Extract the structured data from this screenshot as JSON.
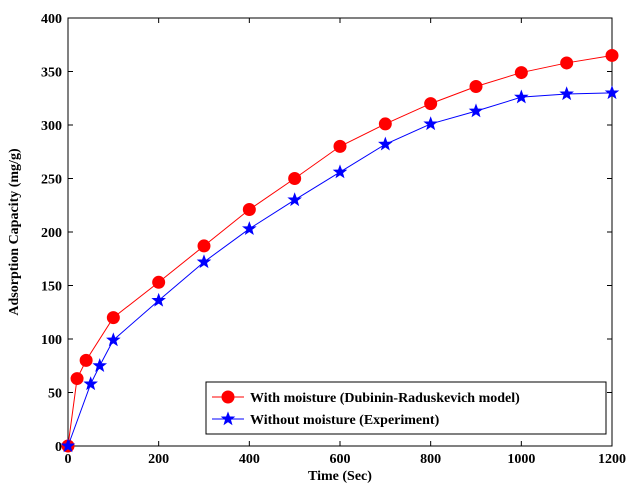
{
  "chart_data": {
    "type": "line",
    "title": "",
    "xlabel": "Time (Sec)",
    "ylabel": "Adsorption Capacity (mg/g)",
    "xlim": [
      0,
      1200
    ],
    "ylim": [
      0,
      400
    ],
    "xticks": [
      0,
      200,
      400,
      600,
      800,
      1000,
      1200
    ],
    "yticks": [
      0,
      50,
      100,
      150,
      200,
      250,
      300,
      350,
      400
    ],
    "grid": false,
    "legend_position": "bottom-right",
    "series": [
      {
        "name": "With moisture (Dubinin-Raduskevich model)",
        "color": "#ff0000",
        "marker": "circle",
        "x": [
          0,
          20,
          40,
          100,
          200,
          300,
          400,
          500,
          600,
          700,
          800,
          900,
          1000,
          1100,
          1200
        ],
        "y": [
          0,
          63,
          80,
          120,
          153,
          187,
          221,
          250,
          280,
          301,
          320,
          336,
          349,
          358,
          365
        ]
      },
      {
        "name": "Without moisture (Experiment)",
        "color": "#0000ff",
        "marker": "star",
        "x": [
          0,
          50,
          70,
          100,
          200,
          300,
          400,
          500,
          600,
          700,
          800,
          900,
          1000,
          1100,
          1200
        ],
        "y": [
          0,
          58,
          75,
          99,
          136,
          172,
          203,
          230,
          256,
          282,
          301,
          313,
          326,
          329,
          330
        ]
      }
    ]
  }
}
